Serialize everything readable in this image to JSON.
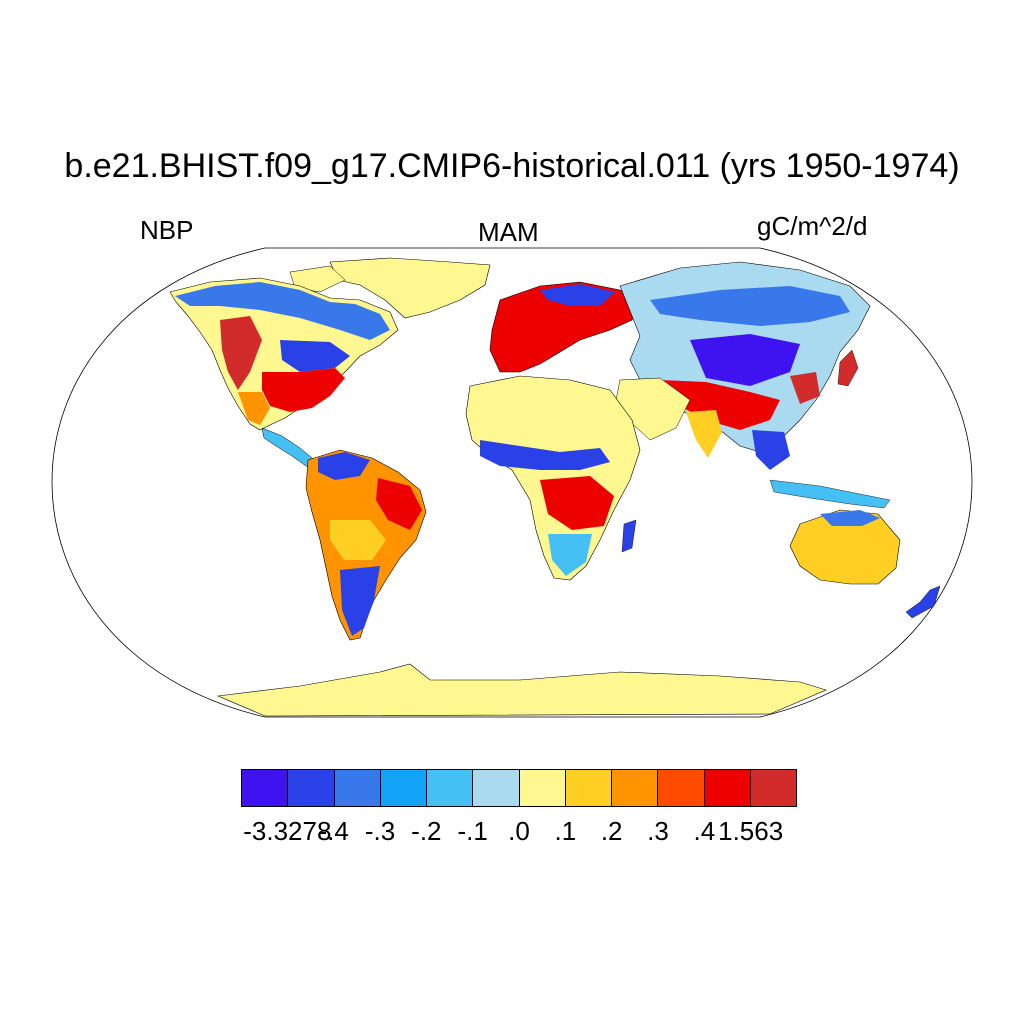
{
  "title": "b.e21.BHIST.f09_g17.CMIP6-historical.011 (yrs 1950-1974)",
  "left_label": "NBP",
  "center_label": "MAM",
  "right_label": "gC/m^2/d",
  "colorbar": {
    "colors": [
      "#3f12f0",
      "#2941e6",
      "#3878ea",
      "#12a3f7",
      "#44c0f5",
      "#a9daf0",
      "#fff891",
      "#ffd023",
      "#ff9400",
      "#ff4b00",
      "#ec0000",
      "#d22b2b"
    ],
    "labels": [
      "-3.3278",
      "-.4",
      "-.3",
      "-.2",
      "-.1",
      ".0",
      ".1",
      ".2",
      ".3",
      ".4",
      "1.563"
    ]
  },
  "map": {
    "projection": "robinson",
    "variable": "NBP",
    "season": "MAM"
  }
}
